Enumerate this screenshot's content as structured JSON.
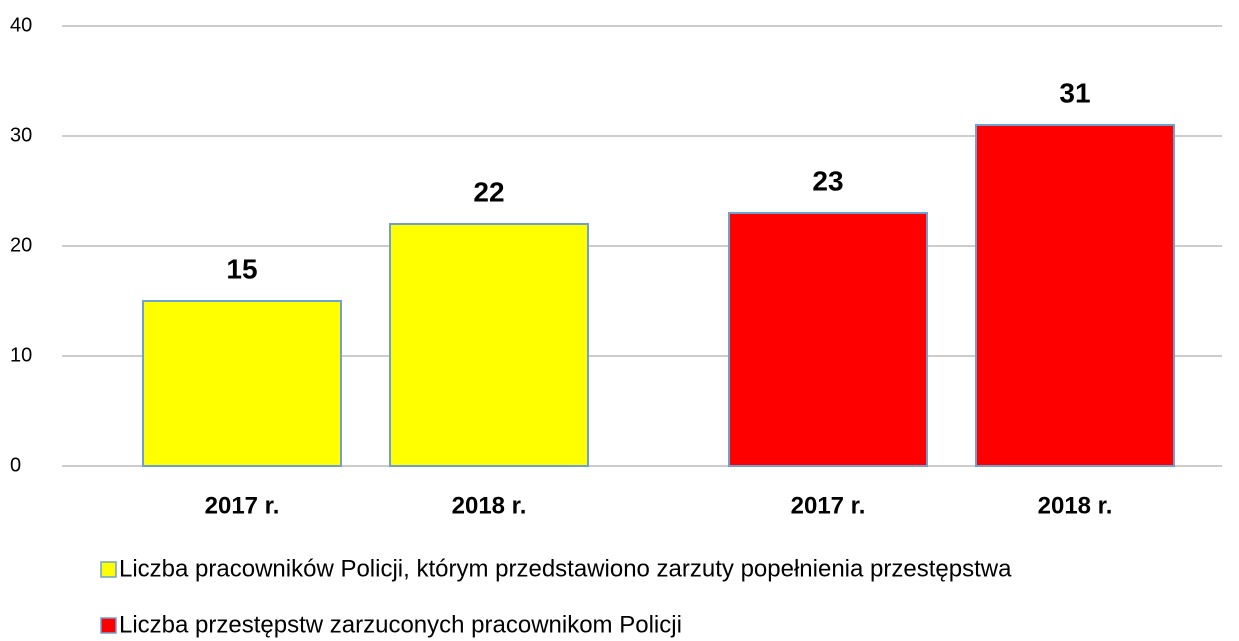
{
  "chart_data": {
    "type": "bar",
    "categories": [
      "2017 r.",
      "2018 r."
    ],
    "series": [
      {
        "name": "Liczba pracowników Policji, którym przedstawiono zarzuty popełnienia przestępstwa",
        "color": "#ffff00",
        "values": [
          15,
          22
        ]
      },
      {
        "name": "Liczba przestępstw zarzuconych pracownikom Policji",
        "color": "#ff0000",
        "values": [
          23,
          31
        ]
      }
    ],
    "ylim": [
      0,
      40
    ],
    "yticks": [
      0,
      10,
      20,
      30,
      40
    ],
    "grid": true,
    "legend": "bottom"
  }
}
